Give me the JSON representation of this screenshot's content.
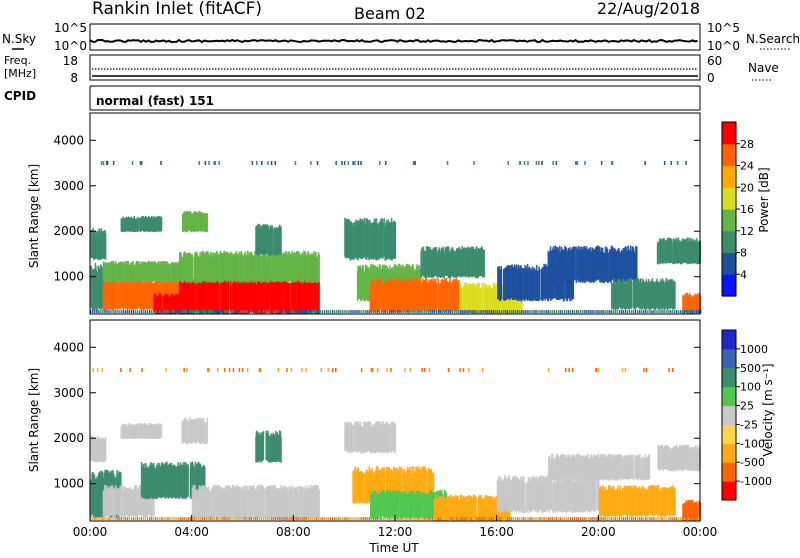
{
  "header": {
    "station": "Rankin Inlet (fitACF)",
    "beam": "Beam 02",
    "date": "22/Aug/2018"
  },
  "top_panels": {
    "nsky": {
      "label": "N.Sky",
      "ticks": [
        "10^5",
        "10^0"
      ]
    },
    "nsearch": {
      "label": "N.Search",
      "ticks": [
        "10^5",
        "10^0"
      ]
    },
    "freq": {
      "label1": "Freq.",
      "label2": "[MHz]",
      "ticks": [
        "18",
        "8"
      ]
    },
    "nave": {
      "label": "Nave",
      "ticks": [
        "60",
        "0"
      ]
    },
    "cpid": {
      "label": "CPID",
      "text": "normal (fast) 151"
    }
  },
  "colors": {
    "power": [
      "#0a14ff",
      "#1e50a0",
      "#3c8c6e",
      "#64b446",
      "#dcdc1e",
      "#ffaa00",
      "#ff6400",
      "#ff0000"
    ],
    "velocity": [
      "#ff0000",
      "#ff6400",
      "#ffaa14",
      "#ffd746",
      "#c8c8c8",
      "#50c850",
      "#3c8c6e",
      "#3c64b4",
      "#1e28c8"
    ]
  },
  "chart_data": [
    {
      "type": "heatmap",
      "name": "power",
      "ylabel": "Slant Range [km]",
      "ylim": [
        180,
        4600
      ],
      "y_ticks": [
        "1000",
        "2000",
        "3000",
        "4000"
      ],
      "y_tick_values": [
        1000,
        2000,
        3000,
        4000
      ],
      "colorbar_label": "Power [dB]",
      "colorbar_ticks": [
        "4",
        "8",
        "12",
        "16",
        "20",
        "24",
        "28"
      ],
      "regions": [
        {
          "t0": 0.0,
          "t1": 1.0,
          "r0": 300,
          "r1": 1200,
          "cls": 2
        },
        {
          "t0": 0.0,
          "t1": 0.6,
          "r0": 1400,
          "r1": 2000,
          "cls": 2
        },
        {
          "t0": 1.2,
          "t1": 2.8,
          "r0": 2000,
          "r1": 2300,
          "cls": 2
        },
        {
          "t0": 3.6,
          "t1": 4.6,
          "r0": 2000,
          "r1": 2400,
          "cls": 3
        },
        {
          "t0": 0.5,
          "t1": 3.5,
          "r0": 300,
          "r1": 900,
          "cls": 6
        },
        {
          "t0": 0.5,
          "t1": 3.5,
          "r0": 900,
          "r1": 1300,
          "cls": 3
        },
        {
          "t0": 2.5,
          "t1": 4.0,
          "r0": 200,
          "r1": 600,
          "cls": 7
        },
        {
          "t0": 3.5,
          "t1": 9.0,
          "r0": 200,
          "r1": 900,
          "cls": 7
        },
        {
          "t0": 3.5,
          "t1": 9.0,
          "r0": 900,
          "r1": 1500,
          "cls": 3
        },
        {
          "t0": 6.5,
          "t1": 7.5,
          "r0": 1500,
          "r1": 2100,
          "cls": 2
        },
        {
          "t0": 10.5,
          "t1": 13.0,
          "r0": 500,
          "r1": 1200,
          "cls": 3
        },
        {
          "t0": 11.0,
          "t1": 14.5,
          "r0": 250,
          "r1": 900,
          "cls": 6
        },
        {
          "t0": 10.0,
          "t1": 12.0,
          "r0": 1400,
          "r1": 2200,
          "cls": 2
        },
        {
          "t0": 13.0,
          "t1": 15.5,
          "r0": 1000,
          "r1": 1600,
          "cls": 2
        },
        {
          "t0": 14.5,
          "t1": 17.0,
          "r0": 200,
          "r1": 800,
          "cls": 4
        },
        {
          "t0": 16.0,
          "t1": 19.0,
          "r0": 500,
          "r1": 1200,
          "cls": 1
        },
        {
          "t0": 18.0,
          "t1": 21.5,
          "r0": 900,
          "r1": 1600,
          "cls": 1
        },
        {
          "t0": 20.5,
          "t1": 23.0,
          "r0": 300,
          "r1": 900,
          "cls": 2
        },
        {
          "t0": 22.3,
          "t1": 24.0,
          "r0": 1300,
          "r1": 1800,
          "cls": 2
        },
        {
          "t0": 23.3,
          "t1": 24.0,
          "r0": 200,
          "r1": 600,
          "cls": 6
        }
      ]
    },
    {
      "type": "heatmap",
      "name": "velocity",
      "xlabel": "Time UT",
      "ylabel": "Slant Range [km]",
      "ylim": [
        180,
        4600
      ],
      "x_ticks": [
        "00:00",
        "04:00",
        "08:00",
        "12:00",
        "16:00",
        "20:00",
        "00:00"
      ],
      "x_tick_values": [
        0,
        4,
        8,
        12,
        16,
        20,
        24
      ],
      "y_ticks": [
        "1000",
        "2000",
        "3000",
        "4000"
      ],
      "y_tick_values": [
        1000,
        2000,
        3000,
        4000
      ],
      "colorbar_label": "Velocity [m s⁻¹]",
      "colorbar_ticks": [
        "-1000",
        "-500",
        "-100",
        "-25",
        "25",
        "100",
        "500",
        "1000"
      ],
      "regions": [
        {
          "t0": 0.0,
          "t1": 1.2,
          "r0": 300,
          "r1": 1200,
          "cls": 6
        },
        {
          "t0": 0.5,
          "t1": 2.5,
          "r0": 300,
          "r1": 900,
          "cls": 4
        },
        {
          "t0": 0.0,
          "t1": 0.6,
          "r0": 1500,
          "r1": 2000,
          "cls": 4
        },
        {
          "t0": 1.2,
          "t1": 2.8,
          "r0": 2000,
          "r1": 2300,
          "cls": 4
        },
        {
          "t0": 3.6,
          "t1": 4.6,
          "r0": 1900,
          "r1": 2400,
          "cls": 4
        },
        {
          "t0": 2.0,
          "t1": 4.5,
          "r0": 700,
          "r1": 1400,
          "cls": 6
        },
        {
          "t0": 4.0,
          "t1": 9.0,
          "r0": 250,
          "r1": 900,
          "cls": 4
        },
        {
          "t0": 6.5,
          "t1": 7.5,
          "r0": 1500,
          "r1": 2100,
          "cls": 6
        },
        {
          "t0": 10.3,
          "t1": 13.5,
          "r0": 600,
          "r1": 1300,
          "cls": 2
        },
        {
          "t0": 11.0,
          "t1": 14.0,
          "r0": 250,
          "r1": 800,
          "cls": 5
        },
        {
          "t0": 10.0,
          "t1": 12.0,
          "r0": 1700,
          "r1": 2300,
          "cls": 4
        },
        {
          "t0": 13.5,
          "t1": 16.5,
          "r0": 200,
          "r1": 700,
          "cls": 2
        },
        {
          "t0": 16.0,
          "t1": 20.0,
          "r0": 400,
          "r1": 1100,
          "cls": 4
        },
        {
          "t0": 18.0,
          "t1": 22.0,
          "r0": 1100,
          "r1": 1600,
          "cls": 4
        },
        {
          "t0": 20.0,
          "t1": 23.0,
          "r0": 300,
          "r1": 900,
          "cls": 2
        },
        {
          "t0": 22.3,
          "t1": 24.0,
          "r0": 1300,
          "r1": 1800,
          "cls": 4
        },
        {
          "t0": 23.3,
          "t1": 24.0,
          "r0": 200,
          "r1": 600,
          "cls": 1
        }
      ]
    }
  ]
}
